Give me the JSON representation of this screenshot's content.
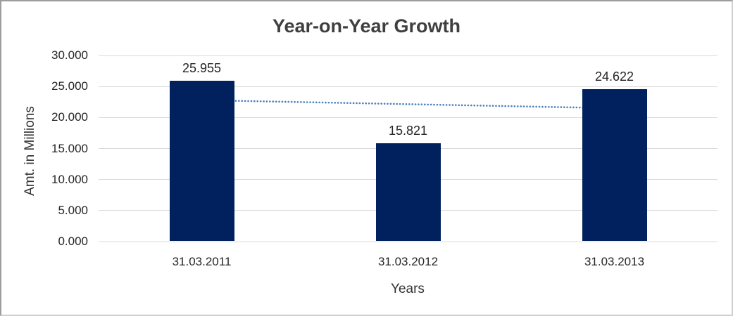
{
  "chart_data": {
    "type": "bar",
    "title": "Year-on-Year Growth",
    "xlabel": "Years",
    "ylabel": "Amt. in Millions",
    "categories": [
      "31.03.2011",
      "31.03.2012",
      "31.03.2013"
    ],
    "values": [
      25.955,
      15.821,
      24.622
    ],
    "value_labels": [
      "25.955",
      "15.821",
      "24.622"
    ],
    "ytick_labels": [
      "30.000",
      "25.000",
      "20.000",
      "15.000",
      "10.000",
      "5.000",
      "0.000"
    ],
    "ylim": [
      0,
      30
    ],
    "grid": "horizontal",
    "legend_position": "none",
    "bar_color": "#01215E",
    "gridline_color": "#D9D9D9",
    "trendline": {
      "type": "linear",
      "style": "dotted",
      "color": "#4F81BD",
      "start_value": 22.8,
      "end_value": 21.5
    }
  }
}
